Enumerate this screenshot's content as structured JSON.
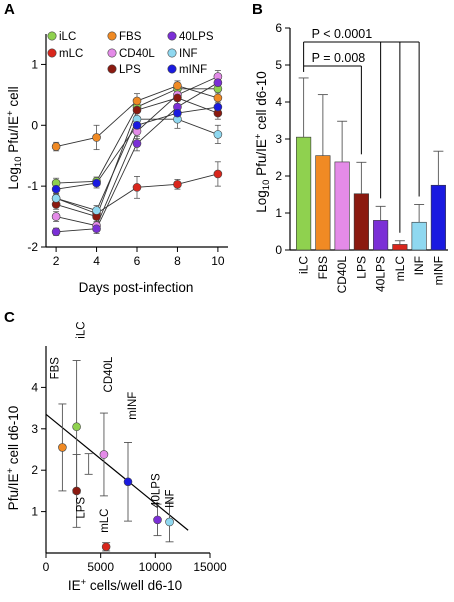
{
  "chart_data": [
    {
      "panel": "A",
      "type": "line",
      "xlabel": "Days post-infection",
      "ylabel": "Log10 Pfu/IE+ cell",
      "xlim": [
        1.5,
        10.5
      ],
      "ylim": [
        -2,
        1.5
      ],
      "x": [
        2,
        4,
        6,
        8,
        10
      ],
      "xticks": [
        "2",
        "4",
        "6",
        "8",
        "10"
      ],
      "yticks": [
        "-2",
        "-1",
        "0",
        "1"
      ],
      "legend": [
        "iLC",
        "FBS",
        "40LPS",
        "mLC",
        "CD40L",
        "INF",
        "LPS",
        "mINF"
      ],
      "series": [
        {
          "name": "iLC",
          "color": "#8fd14f",
          "values": [
            -0.95,
            -0.92,
            0.3,
            0.6,
            0.6
          ],
          "err": [
            0.08,
            0.07,
            0.1,
            0.1,
            0.12
          ]
        },
        {
          "name": "mLC",
          "color": "#d9261c",
          "values": [
            -1.2,
            -1.45,
            -1.02,
            -0.97,
            -0.8
          ],
          "err": [
            0.07,
            0.08,
            0.18,
            0.08,
            0.2
          ]
        },
        {
          "name": "FBS",
          "color": "#f08a24",
          "values": [
            -0.35,
            -0.2,
            0.4,
            0.65,
            0.45
          ],
          "err": [
            0.07,
            0.2,
            0.12,
            0.08,
            0.08
          ]
        },
        {
          "name": "CD40L",
          "color": "#e48be8",
          "values": [
            -1.5,
            -1.65,
            -0.1,
            0.5,
            0.8
          ],
          "err": [
            0.08,
            0.1,
            0.12,
            0.08,
            0.1
          ]
        },
        {
          "name": "LPS",
          "color": "#8b1a10",
          "values": [
            -1.3,
            -1.5,
            0.25,
            0.45,
            0.2
          ],
          "err": [
            0.08,
            0.08,
            0.12,
            0.1,
            0.1
          ]
        },
        {
          "name": "40LPS",
          "color": "#7b2fd6",
          "values": [
            -1.75,
            -1.7,
            -0.3,
            0.3,
            0.7
          ],
          "err": [
            0.06,
            0.08,
            0.12,
            0.1,
            0.1
          ]
        },
        {
          "name": "INF",
          "color": "#8fd8f0",
          "values": [
            -1.2,
            -1.4,
            0.1,
            0.1,
            -0.15
          ],
          "err": [
            0.08,
            0.08,
            0.15,
            0.15,
            0.15
          ]
        },
        {
          "name": "mINF",
          "color": "#1a1ae0",
          "values": [
            -1.05,
            -0.95,
            0.0,
            0.2,
            0.3
          ],
          "err": [
            0.08,
            0.08,
            0.12,
            0.12,
            0.12
          ]
        }
      ]
    },
    {
      "panel": "B",
      "type": "bar",
      "ylabel": "Log10 Pfu/IE+ cell d6-10",
      "ylim": [
        0,
        6
      ],
      "yticks": [
        "0",
        "1",
        "2",
        "3",
        "4",
        "5",
        "6"
      ],
      "categories": [
        "iLC",
        "FBS",
        "CD40L",
        "LPS",
        "40LPS",
        "mLC",
        "INF",
        "mINF"
      ],
      "values": [
        3.05,
        2.55,
        2.38,
        1.52,
        0.8,
        0.15,
        0.75,
        1.75
      ],
      "err": [
        1.6,
        1.65,
        1.1,
        0.85,
        0.38,
        0.1,
        0.48,
        0.92
      ],
      "colors": [
        "#8fd14f",
        "#f08a24",
        "#e48be8",
        "#8b1a10",
        "#7b2fd6",
        "#d9261c",
        "#8fd8f0",
        "#1a1ae0"
      ],
      "annotations": [
        "P < 0.0001",
        "P = 0.008"
      ]
    },
    {
      "panel": "C",
      "type": "scatter",
      "xlabel": "IE+ cells/well d6-10",
      "ylabel": "Pfu/IE+ cell d6-10",
      "xlim": [
        0,
        15000
      ],
      "ylim": [
        0,
        5
      ],
      "xticks": [
        "0",
        "5000",
        "10000",
        "15000"
      ],
      "yticks": [
        "1",
        "2",
        "3",
        "4"
      ],
      "points": [
        {
          "label": "FBS",
          "x": 1500,
          "y": 2.55,
          "err": 1.05,
          "color": "#f08a24"
        },
        {
          "label": "iLC",
          "x": 2800,
          "y": 3.05,
          "err": 1.6,
          "color": "#8fd14f"
        },
        {
          "label": "LPS",
          "x": 2800,
          "y": 1.5,
          "err": 0.88,
          "color": "#8b1a10"
        },
        {
          "label": "CD40L",
          "x": 5300,
          "y": 2.38,
          "err": 1.0,
          "color": "#e48be8"
        },
        {
          "label": "mLC",
          "x": 5500,
          "y": 0.15,
          "err": 0.1,
          "color": "#d9261c"
        },
        {
          "label": "mINF",
          "x": 7500,
          "y": 1.72,
          "err": 0.95,
          "color": "#1a1ae0"
        },
        {
          "label": "40LPS",
          "x": 10200,
          "y": 0.8,
          "err": 0.38,
          "color": "#7b2fd6"
        },
        {
          "label": "INF",
          "x": 11300,
          "y": 0.75,
          "err": 0.48,
          "color": "#8fd8f0"
        }
      ],
      "unlabeled_points": [
        {
          "x": 3900,
          "y": 2.15,
          "err": 0.25
        }
      ],
      "fit": {
        "x1": 0,
        "y1": 3.35,
        "x2": 13000,
        "y2": 0.55
      }
    }
  ]
}
